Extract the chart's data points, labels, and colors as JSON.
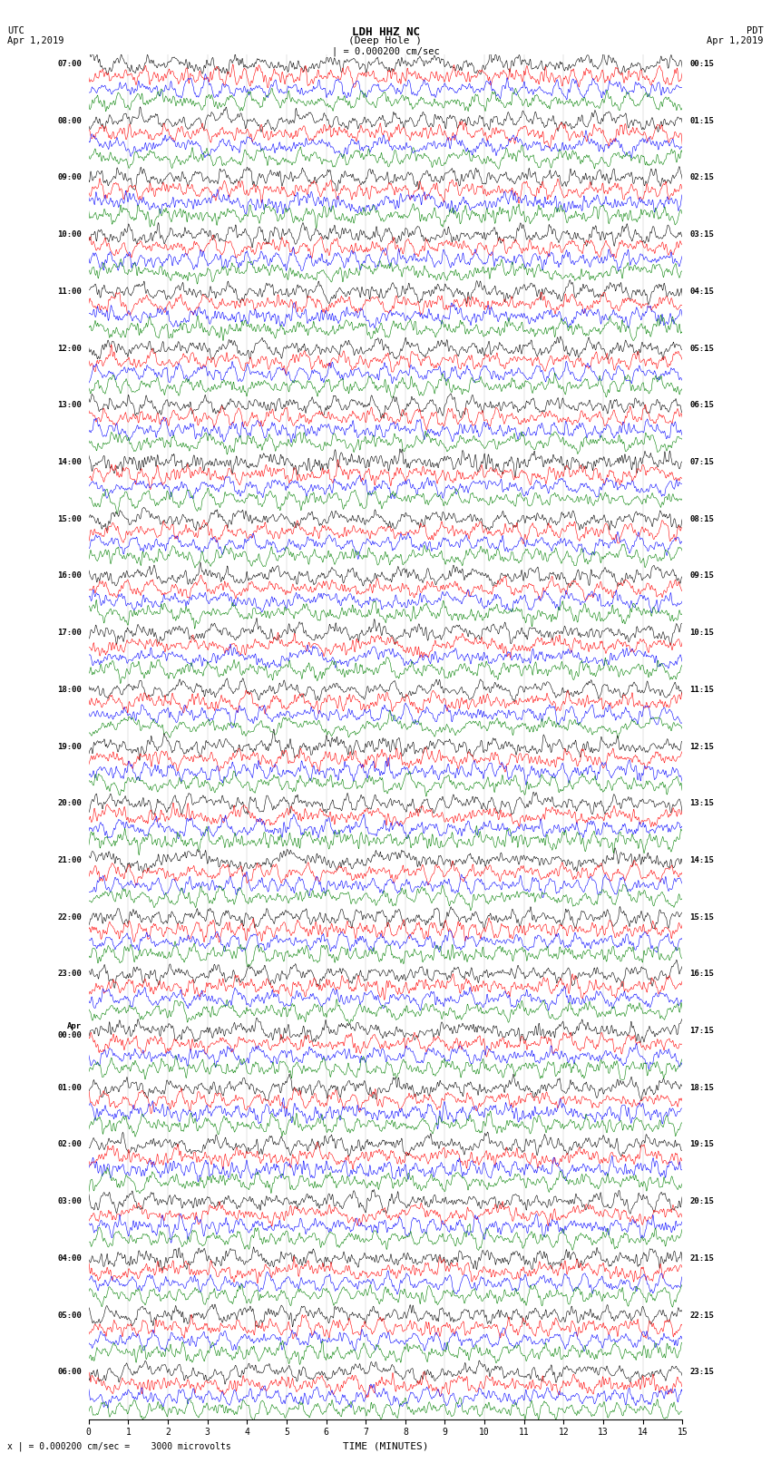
{
  "title_line1": "LDH HHZ NC",
  "title_line2": "(Deep Hole )",
  "title_scale": "| = 0.000200 cm/sec",
  "left_label_line1": "UTC",
  "left_label_line2": "Apr 1,2019",
  "right_label_line1": "PDT",
  "right_label_line2": "Apr 1,2019",
  "bottom_label": "TIME (MINUTES)",
  "footer_text": "x | = 0.000200 cm/sec =    3000 microvolts",
  "xlabel_ticks": [
    0,
    1,
    2,
    3,
    4,
    5,
    6,
    7,
    8,
    9,
    10,
    11,
    12,
    13,
    14,
    15
  ],
  "left_times": [
    "07:00",
    "08:00",
    "09:00",
    "10:00",
    "11:00",
    "12:00",
    "13:00",
    "14:00",
    "15:00",
    "16:00",
    "17:00",
    "18:00",
    "19:00",
    "20:00",
    "21:00",
    "22:00",
    "23:00",
    "Apr\n00:00",
    "01:00",
    "02:00",
    "03:00",
    "04:00",
    "05:00",
    "06:00"
  ],
  "right_times": [
    "00:15",
    "01:15",
    "02:15",
    "03:15",
    "04:15",
    "05:15",
    "06:15",
    "07:15",
    "08:15",
    "09:15",
    "10:15",
    "11:15",
    "12:15",
    "13:15",
    "14:15",
    "15:15",
    "16:15",
    "17:15",
    "18:15",
    "19:15",
    "20:15",
    "21:15",
    "22:15",
    "23:15"
  ],
  "trace_colors": [
    "black",
    "red",
    "blue",
    "green"
  ],
  "background_color": "white",
  "num_groups": 24,
  "traces_per_group": 4,
  "x_min": 0,
  "x_max": 15,
  "noise_seed": 42
}
